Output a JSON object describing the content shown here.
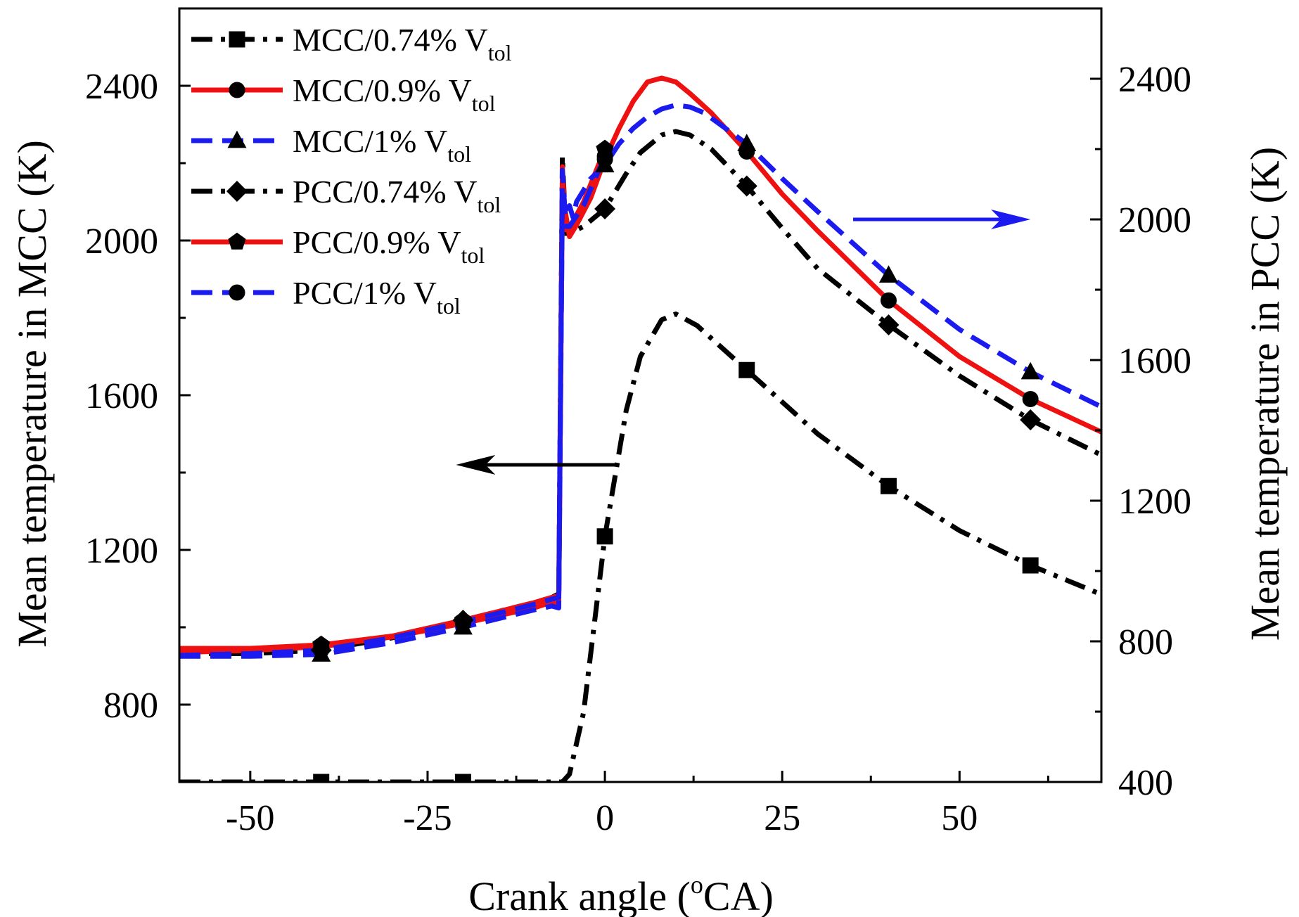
{
  "chart_data": {
    "type": "line",
    "title": "",
    "xlabel": "Crank angle (",
    "xlabel_sup": "o",
    "xlabel_tail": "CA)",
    "ylabel_left": "Mean temperature in MCC (K)",
    "ylabel_right": "Mean temperature in PCC (K)",
    "xlim": [
      -60,
      70
    ],
    "ylim_left": [
      600,
      2600
    ],
    "ylim_right": [
      400,
      2600
    ],
    "x_ticks": [
      -50,
      -25,
      0,
      25,
      50
    ],
    "x_tick_labels": [
      "-50",
      "-25",
      "0",
      "25",
      "50"
    ],
    "y_left_ticks": [
      800,
      1200,
      1600,
      2000,
      2400
    ],
    "y_left_tick_labels": [
      "800",
      "1200",
      "1600",
      "2000",
      "2400"
    ],
    "y_right_ticks": [
      400,
      800,
      1200,
      1600,
      2000,
      2400
    ],
    "y_right_tick_labels": [
      "400",
      "800",
      "1200",
      "1600",
      "2000",
      "2400"
    ],
    "grid": false,
    "legend_position": "top-left",
    "annotations": [
      {
        "text": "",
        "kind": "arrow-left",
        "meaning": "MCC curves read on left axis",
        "color": "#000000",
        "from": [
          2,
          1420
        ],
        "to": [
          -21,
          1420
        ],
        "axis": "left"
      },
      {
        "text": "",
        "kind": "arrow-right",
        "meaning": "PCC curves read on right axis",
        "color": "#1b1bf0",
        "from": [
          35,
          2000
        ],
        "to": [
          60,
          2000
        ],
        "axis": "right"
      }
    ],
    "series": [
      {
        "name": "MCC/0.74% V",
        "sub": "tol",
        "axis": "left",
        "color": "#000000",
        "dash": "dashdot",
        "marker": "square",
        "x": [
          -60,
          -50,
          -40,
          -30,
          -20,
          -10,
          -7,
          -6,
          -5,
          -3,
          0,
          3,
          5,
          8,
          10,
          13,
          20,
          30,
          40,
          50,
          60,
          70
        ],
        "y": [
          600,
          600,
          600,
          600,
          600,
          600,
          600,
          600,
          620,
          780,
          1235,
          1560,
          1700,
          1795,
          1810,
          1780,
          1665,
          1500,
          1365,
          1250,
          1160,
          1085
        ],
        "marker_x": [
          -40,
          -20,
          0,
          20,
          40,
          60
        ]
      },
      {
        "name": "MCC/0.9% V",
        "sub": "tol",
        "axis": "left",
        "color": "#ee1111",
        "dash": "solid",
        "marker": "circle",
        "x": [
          -60,
          -50,
          -40,
          -30,
          -20,
          -10,
          -7.5,
          -6.5,
          -6,
          -5,
          -4,
          -2,
          0,
          2,
          4,
          6,
          8,
          10,
          12,
          15,
          20,
          25,
          30,
          40,
          50,
          60,
          70
        ],
        "y": [
          935,
          940,
          950,
          975,
          1010,
          1050,
          1065,
          1060,
          2120,
          2010,
          2040,
          2110,
          2210,
          2290,
          2360,
          2410,
          2420,
          2410,
          2380,
          2330,
          2230,
          2120,
          2025,
          1845,
          1700,
          1590,
          1505
        ],
        "marker_x": [
          -40,
          -20,
          0,
          20,
          40,
          60
        ]
      },
      {
        "name": "MCC/1% V",
        "sub": "tol",
        "axis": "left",
        "color": "#1b1bf0",
        "dash": "dashed",
        "marker": "triangle",
        "x": [
          -60,
          -50,
          -40,
          -30,
          -20,
          -10,
          -7.5,
          -6.5,
          -6,
          -5.5,
          -5,
          -4.5,
          -4,
          -2,
          0,
          2,
          4,
          6,
          8,
          10,
          12,
          14,
          20,
          25,
          30,
          40,
          50,
          60,
          70
        ],
        "y": [
          925,
          925,
          930,
          960,
          1000,
          1045,
          1055,
          1050,
          2110,
          2080,
          2090,
          2060,
          2100,
          2160,
          2195,
          2250,
          2290,
          2320,
          2340,
          2350,
          2345,
          2330,
          2250,
          2160,
          2075,
          1910,
          1770,
          1660,
          1570
        ],
        "marker_x": [
          -40,
          -20,
          0,
          20,
          40,
          60
        ]
      },
      {
        "name": "PCC/0.74% V",
        "sub": "tol",
        "axis": "right",
        "color": "#000000",
        "dash": "dashdot",
        "marker": "diamond",
        "x": [
          -60,
          -50,
          -40,
          -30,
          -20,
          -10,
          -7.5,
          -6.5,
          -6,
          -5.5,
          -5,
          -3,
          0,
          3,
          5,
          8,
          10,
          12,
          15,
          20,
          25,
          30,
          40,
          50,
          60,
          70
        ],
        "y": [
          765,
          765,
          775,
          810,
          860,
          910,
          925,
          935,
          2180,
          1960,
          1960,
          1980,
          2030,
          2130,
          2190,
          2240,
          2250,
          2240,
          2200,
          2095,
          1975,
          1860,
          1700,
          1555,
          1430,
          1330
        ],
        "marker_x": [
          -40,
          -20,
          0,
          20,
          40,
          60
        ]
      },
      {
        "name": "PCC/0.9% V",
        "sub": "tol",
        "axis": "right",
        "color": "#ee1111",
        "dash": "solid",
        "marker": "pentagon",
        "x": [
          -60,
          -50,
          -40,
          -30,
          -20,
          -10,
          -7.5,
          -6.5,
          -6,
          -5.5,
          -5,
          -3,
          0
        ],
        "y": [
          780,
          780,
          790,
          815,
          860,
          910,
          925,
          930,
          2150,
          1970,
          1975,
          2050,
          2200
        ],
        "marker_x": [
          -40,
          -20,
          0,
          20,
          40,
          60
        ]
      },
      {
        "name": "PCC/1% V",
        "sub": "tol",
        "axis": "right",
        "color": "#1b1bf0",
        "dash": "dashed",
        "marker": "circle",
        "x": [
          -60,
          -50,
          -40,
          -30,
          -20,
          -10,
          -7.5,
          -6.5,
          -6,
          -5.5,
          -5,
          -3,
          0
        ],
        "y": [
          760,
          765,
          775,
          810,
          855,
          905,
          920,
          925,
          2140,
          1980,
          1980,
          2040,
          2180
        ],
        "marker_x": [
          -40,
          -20,
          0,
          20,
          40,
          60
        ]
      }
    ]
  }
}
